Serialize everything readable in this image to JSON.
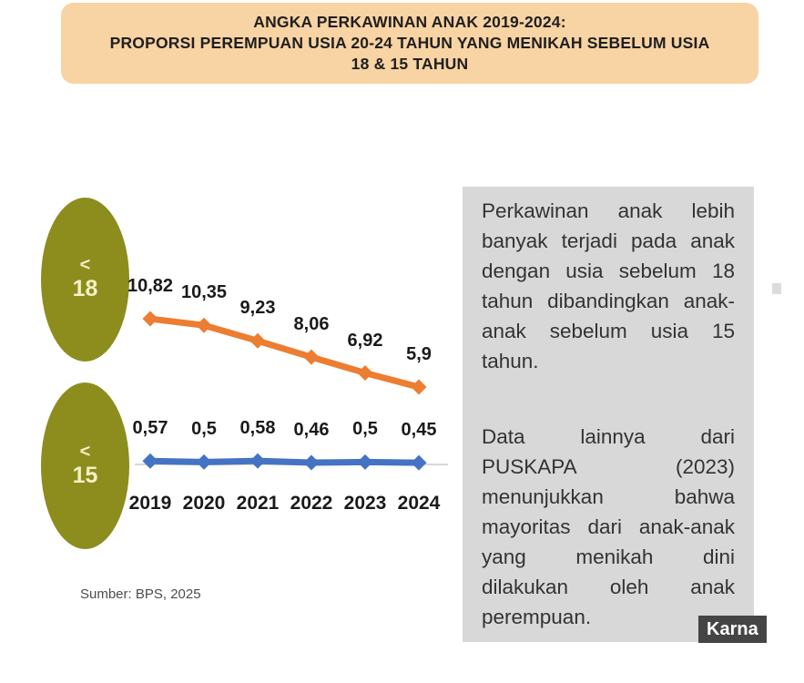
{
  "colors": {
    "banner_bg": "#f8d3a3",
    "banner_text": "#1f1f1f",
    "badge_olive": "#8c8d1d",
    "badge_text": "#f5efc6",
    "infobox_bg": "#d8d8d8",
    "infobox_text": "#333333",
    "watermark_bg": "#454545",
    "watermark_text": "#ffffff",
    "label_text": "#1a1a1a",
    "source_text": "#4d4d4d",
    "axis_line": "#d8d8d8",
    "series_under_18": "#ed7d31",
    "series_under_15": "#4472c4"
  },
  "banner": {
    "lines": [
      "ANGKA PERKAWINAN ANAK 2019-2024:",
      "PROPORSI PEREMPUAN USIA 20-24 TAHUN YANG MENIKAH SEBELUM USIA",
      "18 & 15 TAHUN"
    ]
  },
  "chart_data": {
    "type": "line",
    "title": "ANGKA PERKAWINAN ANAK 2019-2024: PROPORSI PEREMPUAN USIA 20-24 TAHUN YANG MENIKAH SEBELUM USIA 18 & 15 TAHUN",
    "categories": [
      "2019",
      "2020",
      "2021",
      "2022",
      "2023",
      "2024"
    ],
    "series": [
      {
        "name": "< 18",
        "key": "under-18",
        "values": [
          10.82,
          10.35,
          9.23,
          8.06,
          6.92,
          5.9
        ],
        "point_labels": [
          "10,82",
          "10,35",
          "9,23",
          "8,06",
          "6,92",
          "5,9"
        ],
        "color": "#ed7d31"
      },
      {
        "name": "< 15",
        "key": "under-15",
        "values": [
          0.57,
          0.5,
          0.58,
          0.46,
          0.5,
          0.45
        ],
        "point_labels": [
          "0,57",
          "0,5",
          "0,58",
          "0,46",
          "0,5",
          "0,45"
        ],
        "color": "#4472c4"
      }
    ],
    "badges": [
      {
        "prefix": "<",
        "value": "18"
      },
      {
        "prefix": "<",
        "value": "15"
      }
    ],
    "xlabel": "",
    "ylabel": "",
    "grid": false,
    "legend_position": "left-ellipse-badges",
    "decimal_separator": ",",
    "source": "Sumber: BPS, 2025"
  },
  "infobox": {
    "paragraphs": [
      "Perkawinan anak lebih banyak terjadi pada anak dengan usia sebelum 18 tahun dibandingkan anak-anak sebelum usia 15 tahun.",
      "Data lainnya dari PUSKAPA (2023) menunjukkan bahwa mayoritas dari anak-anak yang menikah dini dilakukan oleh anak perempuan."
    ]
  },
  "watermark": {
    "label": "Karna"
  }
}
